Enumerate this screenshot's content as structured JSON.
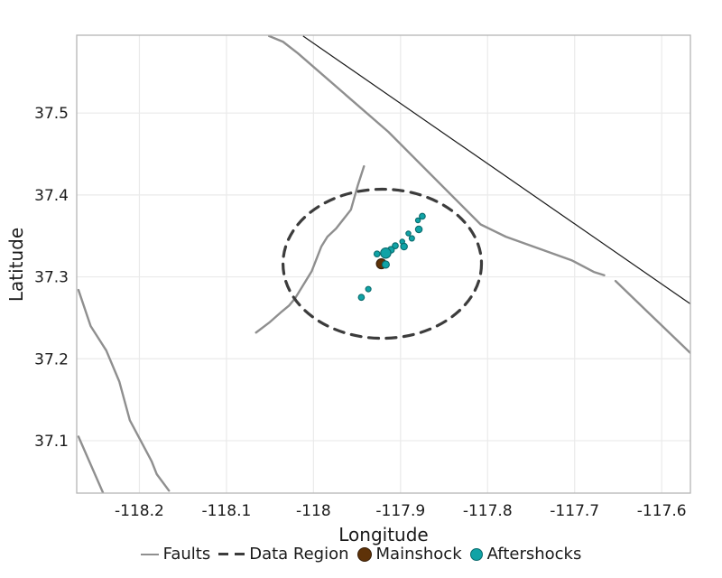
{
  "chart_data": {
    "type": "scatter",
    "xlabel": "Longitude",
    "ylabel": "Latitude",
    "xlim": [
      -118.272,
      -117.567
    ],
    "ylim": [
      37.036,
      37.595
    ],
    "grid": true,
    "xticks": {
      "values": [
        -118.2,
        -118.1,
        -118.0,
        -117.9,
        -117.8,
        -117.7,
        -117.6
      ],
      "labels": [
        "-118.2",
        "-118.1",
        "-118",
        "-117.9",
        "-117.8",
        "-117.7",
        "-117.6"
      ]
    },
    "yticks": {
      "values": [
        37.1,
        37.2,
        37.3,
        37.4,
        37.5
      ],
      "labels": [
        "37.1",
        "37.2",
        "37.3",
        "37.4",
        "37.5"
      ]
    },
    "legend": {
      "position": "bottom",
      "entries": [
        "Faults",
        "Data Region",
        "Mainshock",
        "Aftershocks"
      ]
    },
    "colors": {
      "fault": "#8F8F8F",
      "boundary": "#1A1A1A",
      "data_region": "#3C3C3C",
      "mainshock_fill": "#5E3208",
      "mainshock_stroke": "#38200A",
      "aftershock_fill": "#10A3A6",
      "aftershock_stroke": "#0A6B6D",
      "grid": "#EAEAEA",
      "spine": "#B5B5B5"
    },
    "faults": {
      "name": "Faults",
      "width": 2.4,
      "lines": [
        [
          [
            -118.051,
            37.594
          ],
          [
            -118.035,
            37.587
          ],
          [
            -118.018,
            37.573
          ],
          [
            -117.914,
            37.477
          ],
          [
            -117.808,
            37.364
          ],
          [
            -117.779,
            37.349
          ],
          [
            -117.703,
            37.32
          ],
          [
            -117.678,
            37.306
          ],
          [
            -117.666,
            37.302
          ]
        ],
        [
          [
            -117.653,
            37.295
          ],
          [
            -117.614,
            37.255
          ],
          [
            -117.567,
            37.207
          ]
        ],
        [
          [
            -117.942,
            37.435
          ],
          [
            -117.949,
            37.412
          ],
          [
            -117.957,
            37.382
          ],
          [
            -117.974,
            37.359
          ],
          [
            -117.984,
            37.349
          ],
          [
            -117.991,
            37.337
          ],
          [
            -118.002,
            37.307
          ],
          [
            -118.021,
            37.274
          ],
          [
            -118.028,
            37.265
          ],
          [
            -118.036,
            37.258
          ],
          [
            -118.051,
            37.244
          ],
          [
            -118.066,
            37.232
          ]
        ],
        [
          [
            -118.27,
            37.284
          ],
          [
            -118.256,
            37.24
          ],
          [
            -118.238,
            37.21
          ],
          [
            -118.223,
            37.172
          ],
          [
            -118.211,
            37.125
          ],
          [
            -118.186,
            37.075
          ],
          [
            -118.18,
            37.059
          ],
          [
            -118.166,
            37.039
          ]
        ],
        [
          [
            -118.27,
            37.105
          ],
          [
            -118.242,
            37.037
          ]
        ]
      ]
    },
    "boundary_line": {
      "name": "state-boundary",
      "width": 1.2,
      "points": [
        [
          -118.012,
          37.594
        ],
        [
          -117.567,
          37.267
        ]
      ]
    },
    "data_region": {
      "name": "Data Region",
      "center": [
        -117.921,
        37.316
      ],
      "rx_deg": 0.114,
      "ry_deg": 0.091,
      "stroke_width": 3.2,
      "dash": "11 8.5"
    },
    "mainshock": {
      "name": "Mainshock",
      "lon": -117.922,
      "lat": 37.316,
      "radius_px": 5.5
    },
    "aftershocks": {
      "name": "Aftershocks",
      "points": [
        [
          -117.875,
          37.374,
          3.3
        ],
        [
          -117.88,
          37.369,
          2.7
        ],
        [
          -117.879,
          37.358,
          3.7
        ],
        [
          -117.891,
          37.353,
          2.7
        ],
        [
          -117.887,
          37.347,
          3.0
        ],
        [
          -117.898,
          37.343,
          2.7
        ],
        [
          -117.906,
          37.338,
          3.3
        ],
        [
          -117.896,
          37.337,
          3.7
        ],
        [
          -117.911,
          37.333,
          3.7
        ],
        [
          -117.917,
          37.329,
          5.7
        ],
        [
          -117.927,
          37.328,
          3.3
        ],
        [
          -117.917,
          37.315,
          4.0
        ],
        [
          -117.937,
          37.285,
          3.0
        ],
        [
          -117.945,
          37.275,
          3.3
        ]
      ]
    }
  }
}
